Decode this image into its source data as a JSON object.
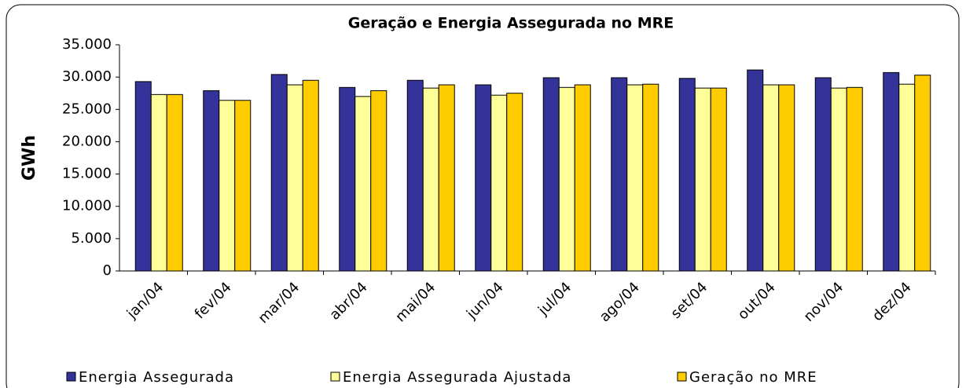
{
  "chart_data": {
    "type": "bar",
    "title": "Geração e Energia Assegurada no MRE",
    "y_label": "GWh",
    "categories": [
      "jan/04",
      "fev/04",
      "mar/04",
      "abr/04",
      "mai/04",
      "jun/04",
      "jul/04",
      "ago/04",
      "set/04",
      "out/04",
      "nov/04",
      "dez/04"
    ],
    "series": [
      {
        "name": "Energia Assegurada",
        "color": "#333399",
        "values": [
          29300,
          27900,
          30400,
          28400,
          29500,
          28800,
          29900,
          29900,
          29800,
          31100,
          29900,
          30700
        ]
      },
      {
        "name": "Energia Assegurada Ajustada",
        "color": "#ffff99",
        "values": [
          27300,
          26400,
          28800,
          27000,
          28300,
          27200,
          28400,
          28800,
          28300,
          28800,
          28300,
          28900
        ]
      },
      {
        "name": "Geração no MRE",
        "color": "#ffcc00",
        "values": [
          27300,
          26400,
          29500,
          27900,
          28800,
          27500,
          28800,
          28900,
          28300,
          28800,
          28400,
          30300
        ]
      }
    ],
    "ylim": [
      0,
      35000
    ],
    "yticks": [
      0,
      {
        "value": 5000,
        "label": "5.000"
      },
      {
        "value": 10000,
        "label": "10.000"
      },
      {
        "value": 15000,
        "label": "15.000"
      },
      {
        "value": 20000,
        "label": "20.000"
      },
      {
        "value": 25000,
        "label": "25.000"
      },
      {
        "value": 30000,
        "label": "30.000"
      },
      {
        "value": 35000,
        "label": "35.000"
      }
    ],
    "grid": false,
    "legend": "bottom"
  }
}
